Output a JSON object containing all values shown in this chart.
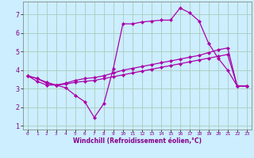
{
  "background_color": "#cceeff",
  "grid_color": "#aaccbb",
  "line_color": "#aa00aa",
  "xlim": [
    -0.5,
    23.5
  ],
  "ylim": [
    0.8,
    7.7
  ],
  "xticks": [
    0,
    1,
    2,
    3,
    4,
    5,
    6,
    7,
    8,
    9,
    10,
    11,
    12,
    13,
    14,
    15,
    16,
    17,
    18,
    19,
    20,
    21,
    22,
    23
  ],
  "yticks": [
    1,
    2,
    3,
    4,
    5,
    6,
    7
  ],
  "xlabel": "Windchill (Refroidissement éolien,°C)",
  "line1_x": [
    0,
    1,
    2,
    3,
    4,
    5,
    6,
    7,
    8,
    9,
    10,
    11,
    12,
    13,
    14,
    15,
    16,
    17,
    18,
    19,
    20,
    21,
    22,
    23
  ],
  "line1_y": [
    3.7,
    3.4,
    3.2,
    3.2,
    3.05,
    2.65,
    2.3,
    1.45,
    2.2,
    4.1,
    6.5,
    6.5,
    6.6,
    6.65,
    6.7,
    6.7,
    7.35,
    7.1,
    6.65,
    5.45,
    4.65,
    4.0,
    3.15,
    3.15
  ],
  "line2_x": [
    0,
    1,
    2,
    3,
    4,
    5,
    6,
    7,
    8,
    9,
    10,
    11,
    12,
    13,
    14,
    15,
    16,
    17,
    18,
    19,
    20,
    21,
    22,
    23
  ],
  "line2_y": [
    3.7,
    3.55,
    3.3,
    3.2,
    3.25,
    3.35,
    3.4,
    3.45,
    3.55,
    3.65,
    3.75,
    3.85,
    3.95,
    4.05,
    4.15,
    4.25,
    4.35,
    4.45,
    4.55,
    4.65,
    4.75,
    4.85,
    3.15,
    3.15
  ],
  "line3_x": [
    0,
    1,
    2,
    3,
    4,
    5,
    6,
    7,
    8,
    9,
    10,
    11,
    12,
    13,
    14,
    15,
    16,
    17,
    18,
    19,
    20,
    21,
    22,
    23
  ],
  "line3_y": [
    3.7,
    3.55,
    3.35,
    3.2,
    3.3,
    3.45,
    3.55,
    3.6,
    3.7,
    3.85,
    4.0,
    4.1,
    4.2,
    4.3,
    4.4,
    4.5,
    4.6,
    4.7,
    4.8,
    4.95,
    5.1,
    5.2,
    3.15,
    3.15
  ],
  "xticklabels": [
    "0",
    "1",
    "2",
    "3",
    "4",
    "5",
    "6",
    "7",
    "8",
    "9",
    "10",
    "11",
    "12",
    "13",
    "14",
    "15",
    "16",
    "17",
    "18",
    "19",
    "20",
    "21",
    "22",
    "23"
  ],
  "ytick_fontsize": 6,
  "xtick_fontsize": 4.5,
  "xlabel_fontsize": 5.5,
  "marker_size": 2.2,
  "line_width": 0.9
}
